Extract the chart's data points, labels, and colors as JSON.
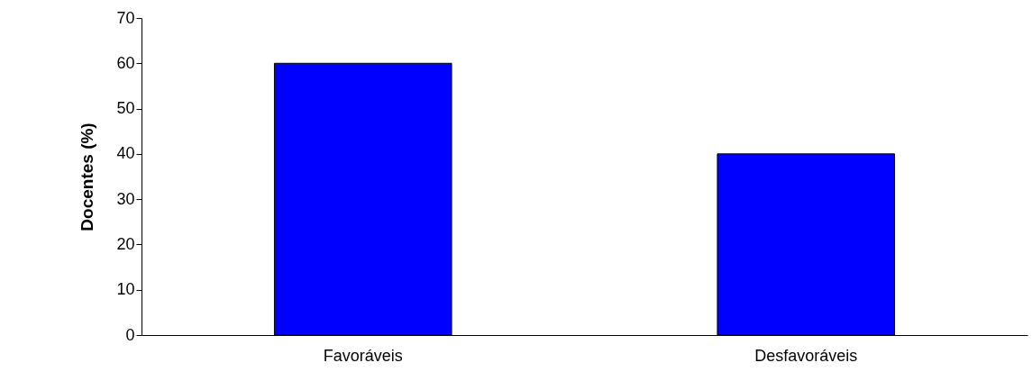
{
  "chart_data": {
    "type": "bar",
    "ylabel": "Docentes (%)",
    "categories": [
      "Favoráveis",
      "Desfavoráveis"
    ],
    "values": [
      60,
      40
    ],
    "color": "#0000ff",
    "ylim": [
      0,
      70
    ],
    "yticks": [
      0,
      10,
      20,
      30,
      40,
      50,
      60,
      70
    ],
    "grid": false
  }
}
